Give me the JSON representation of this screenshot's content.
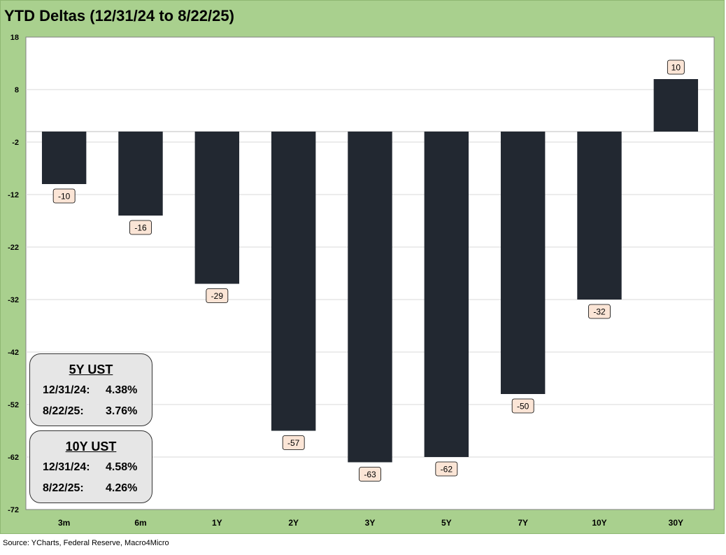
{
  "title": "YTD Deltas (12/31/24 to 8/22/25)",
  "source": "Source: YCharts, Federal Reserve, Macro4Micro",
  "colors": {
    "frame": "#a9d08e",
    "bar": "#222831",
    "label_bg": "#fbe5d6",
    "grid": "#d9d9d9"
  },
  "boxes": [
    {
      "title": "5Y UST",
      "rows": [
        {
          "date": "12/31/24:",
          "value": "4.38%"
        },
        {
          "date": "8/22/25:",
          "value": "3.76%"
        }
      ]
    },
    {
      "title": "10Y UST",
      "rows": [
        {
          "date": "12/31/24:",
          "value": "4.58%"
        },
        {
          "date": "8/22/25:",
          "value": "4.26%"
        }
      ]
    }
  ],
  "chart_data": {
    "type": "bar",
    "title": "YTD Deltas (12/31/24 to 8/22/25)",
    "categories": [
      "3m",
      "6m",
      "1Y",
      "2Y",
      "3Y",
      "5Y",
      "7Y",
      "10Y",
      "30Y"
    ],
    "values": [
      -10,
      -16,
      -29,
      -57,
      -63,
      -62,
      -50,
      -32,
      10
    ],
    "data_labels": [
      "-10",
      "-16",
      "-29",
      "-57",
      "-63",
      "-62",
      "-50",
      "-32",
      "10"
    ],
    "ylim": [
      -72,
      18
    ],
    "yticks": [
      18,
      8,
      -2,
      -12,
      -22,
      -32,
      -42,
      -52,
      -62,
      -72
    ],
    "baseline": 0,
    "grid": true,
    "legend": "none"
  }
}
